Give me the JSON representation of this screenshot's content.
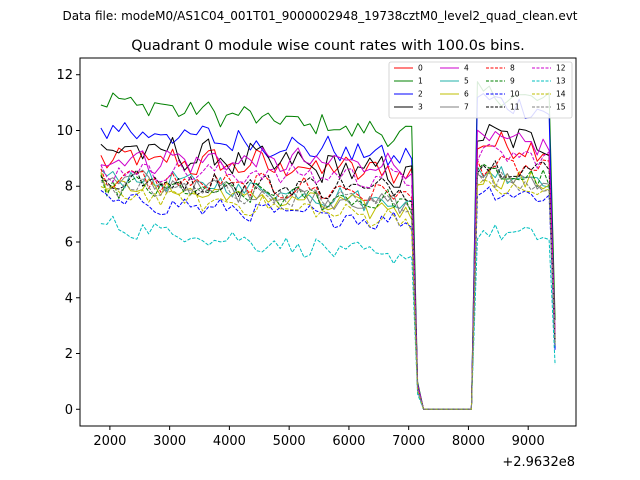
{
  "figure": {
    "suptitle": "Data file: modeM0/AS1C04_001T01_9000002948_19738cztM0_level2_quad_clean.evt",
    "offset_label": "+2.9632e8"
  },
  "chart_data": {
    "type": "line",
    "title": "Quadrant 0 module wise count rates with 100.0s bins.",
    "xlabel": "",
    "ylabel": "",
    "x_offset": 296320000,
    "xlim": [
      1500,
      9800
    ],
    "ylim": [
      -0.6,
      12.6
    ],
    "xticks": [
      2000,
      3000,
      4000,
      5000,
      6000,
      7000,
      8000,
      9000
    ],
    "xtick_labels": [
      "2000",
      "3000",
      "4000",
      "5000",
      "6000",
      "7000",
      "8000",
      "9000"
    ],
    "yticks": [
      0,
      2,
      4,
      6,
      8,
      10,
      12
    ],
    "ytick_labels": [
      "0",
      "2",
      "4",
      "6",
      "8",
      "10",
      "12"
    ],
    "grid": false,
    "legend_placement": "top-right",
    "legend_columns": 4,
    "segments": {
      "active1": [
        1850,
        7050
      ],
      "gap": [
        7050,
        8050
      ],
      "active2": [
        8050,
        9450
      ],
      "bin_width_s": 100,
      "gap_first_value_fraction": 0.1
    },
    "series": [
      {
        "name": "0",
        "color": "#ff0000",
        "dash": "solid",
        "level1_start": 9.0,
        "level1_end": 8.5,
        "level2": 9.6,
        "end_value": 2.5,
        "amplitude": 0.45
      },
      {
        "name": "1",
        "color": "#008000",
        "dash": "solid",
        "level1_start": 11.1,
        "level1_end": 9.8,
        "level2": 11.4,
        "end_value": 3.2,
        "amplitude": 0.35
      },
      {
        "name": "2",
        "color": "#0000ff",
        "dash": "solid",
        "level1_start": 10.1,
        "level1_end": 9.0,
        "level2": 11.2,
        "end_value": 2.2,
        "amplitude": 0.4
      },
      {
        "name": "3",
        "color": "#000000",
        "dash": "solid",
        "level1_start": 9.4,
        "level1_end": 8.4,
        "level2": 9.9,
        "end_value": 2.6,
        "amplitude": 0.5
      },
      {
        "name": "4",
        "color": "#cc00cc",
        "dash": "solid",
        "level1_start": 9.0,
        "level1_end": 8.8,
        "level2": 9.6,
        "end_value": 2.7,
        "amplitude": 0.4
      },
      {
        "name": "5",
        "color": "#20b2aa",
        "dash": "solid",
        "level1_start": 8.4,
        "level1_end": 7.4,
        "level2": 8.6,
        "end_value": 2.4,
        "amplitude": 0.35
      },
      {
        "name": "6",
        "color": "#bfbf00",
        "dash": "solid",
        "level1_start": 8.1,
        "level1_end": 7.1,
        "level2": 8.4,
        "end_value": 2.3,
        "amplitude": 0.35
      },
      {
        "name": "7",
        "color": "#808080",
        "dash": "solid",
        "level1_start": 8.3,
        "level1_end": 7.3,
        "level2": 8.5,
        "end_value": 2.4,
        "amplitude": 0.35
      },
      {
        "name": "8",
        "color": "#ff0000",
        "dash": "dashed",
        "level1_start": 8.3,
        "level1_end": 7.7,
        "level2": 8.8,
        "end_value": 2.5,
        "amplitude": 0.35
      },
      {
        "name": "9",
        "color": "#008000",
        "dash": "dashed",
        "level1_start": 8.0,
        "level1_end": 7.4,
        "level2": 8.5,
        "end_value": 2.3,
        "amplitude": 0.35
      },
      {
        "name": "10",
        "color": "#0000ff",
        "dash": "dashed",
        "level1_start": 7.5,
        "level1_end": 6.7,
        "level2": 7.9,
        "end_value": 2.1,
        "amplitude": 0.3
      },
      {
        "name": "11",
        "color": "#000000",
        "dash": "dashed",
        "level1_start": 8.2,
        "level1_end": 7.9,
        "level2": 8.8,
        "end_value": 2.4,
        "amplitude": 0.35
      },
      {
        "name": "12",
        "color": "#cc00cc",
        "dash": "dashed",
        "level1_start": 8.6,
        "level1_end": 8.3,
        "level2": 9.2,
        "end_value": 2.6,
        "amplitude": 0.35
      },
      {
        "name": "13",
        "color": "#00bfbf",
        "dash": "dashed",
        "level1_start": 6.6,
        "level1_end": 5.4,
        "level2": 6.4,
        "end_value": 1.6,
        "amplitude": 0.3
      },
      {
        "name": "14",
        "color": "#bfbf00",
        "dash": "dashed",
        "level1_start": 7.8,
        "level1_end": 6.8,
        "level2": 8.0,
        "end_value": 2.3,
        "amplitude": 0.3
      },
      {
        "name": "15",
        "color": "#808080",
        "dash": "dashed",
        "level1_start": 8.0,
        "level1_end": 7.4,
        "level2": 8.3,
        "end_value": 2.3,
        "amplitude": 0.3
      }
    ]
  }
}
